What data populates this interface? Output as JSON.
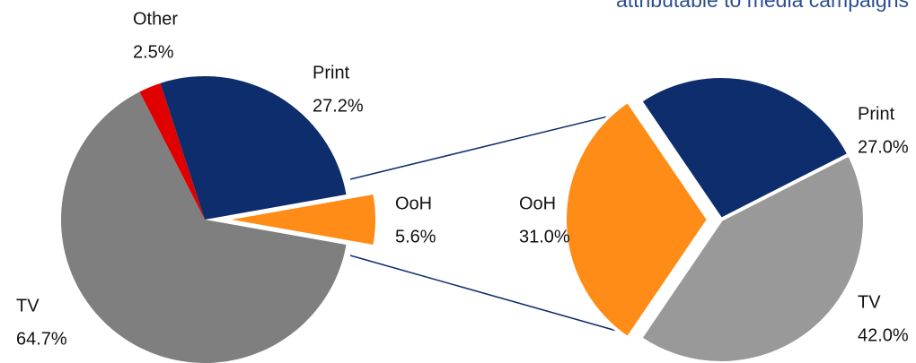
{
  "chart_data": [
    {
      "type": "pie",
      "categories": [
        "Other",
        "Print",
        "OoH",
        "TV"
      ],
      "values": [
        2.5,
        27.2,
        5.6,
        64.7
      ],
      "value_labels": [
        "2.5%",
        "27.2%",
        "5.6%",
        "64.7%"
      ],
      "colors": [
        "#e00000",
        "#0d2d6c",
        "#ff8c16",
        "#7f7f7f"
      ]
    },
    {
      "type": "pie",
      "title": "attributable to media campaigns",
      "categories": [
        "OoH",
        "Print",
        "TV"
      ],
      "values": [
        31.0,
        27.0,
        42.0
      ],
      "value_labels": [
        "31.0%",
        "27.0%",
        "42.0%"
      ],
      "colors": [
        "#ff8c16",
        "#0d2d6c",
        "#999999"
      ]
    }
  ]
}
